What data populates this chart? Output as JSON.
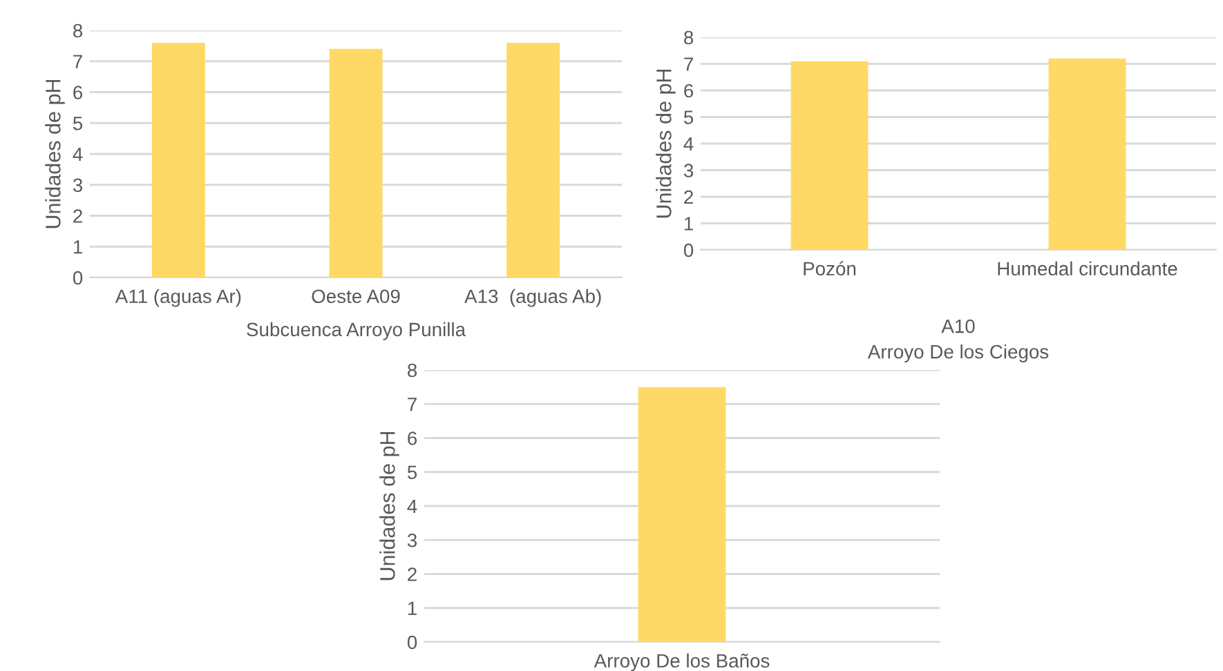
{
  "chart_data": [
    {
      "type": "bar",
      "categories": [
        "A11 (aguas Ar)",
        "Oeste A09",
        "A13  (aguas Ab)"
      ],
      "values": [
        7.6,
        7.4,
        7.6
      ],
      "color": "#ffd966",
      "xlabel": "Subcuenca Arroyo Punilla",
      "ylabel": "Unidades de pH",
      "ylim": [
        0,
        8
      ],
      "yticks": [
        0,
        1,
        2,
        3,
        4,
        5,
        6,
        7,
        8
      ],
      "grid": "y"
    },
    {
      "type": "bar",
      "categories": [
        "Pozón",
        "Humedal circundante"
      ],
      "values": [
        7.1,
        7.2
      ],
      "color": "#ffd966",
      "xlabel": "Arroyo De los Ciegos",
      "annotations": [
        "A10"
      ],
      "ylabel": "Unidades de pH",
      "ylim": [
        0,
        8
      ],
      "yticks": [
        0,
        1,
        2,
        3,
        4,
        5,
        6,
        7,
        8
      ],
      "grid": "y"
    },
    {
      "type": "bar",
      "categories": [
        "Arroyo De los Baños"
      ],
      "values": [
        7.5
      ],
      "color": "#ffd966",
      "ylabel": "Unidades de pH",
      "ylim": [
        0,
        8
      ],
      "yticks": [
        0,
        1,
        2,
        3,
        4,
        5,
        6,
        7,
        8
      ],
      "grid": "y"
    }
  ]
}
